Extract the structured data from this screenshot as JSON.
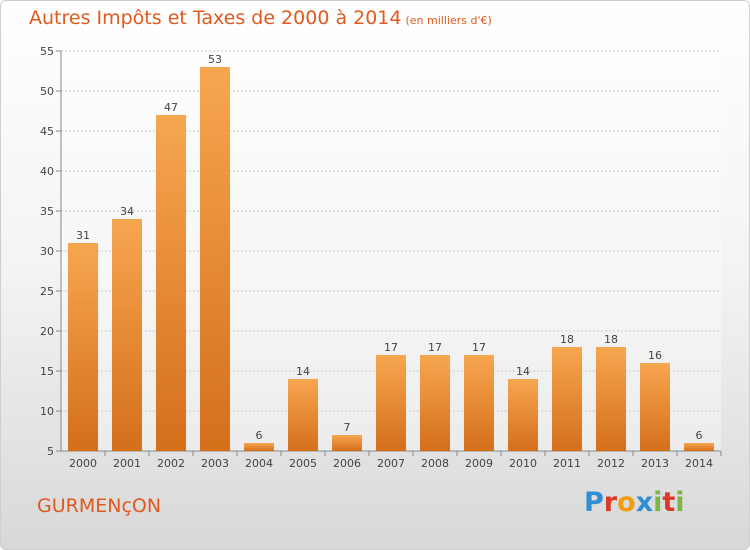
{
  "title": "Autres Impôts et Taxes de 2000 à 2014",
  "unit": "(en milliers d'€)",
  "place": "GURMENçON",
  "logo": {
    "letters": [
      "P",
      "r",
      "o",
      "x",
      "i",
      "t",
      "i"
    ],
    "colors": [
      "#2f8fd6",
      "#d83b2b",
      "#f39c12",
      "#2f8fd6",
      "#7ab648",
      "#d83b2b",
      "#7ab648"
    ]
  },
  "colors": {
    "bar_light": "#f7a650",
    "bar_dark": "#d46f1a",
    "accent": "#e0591e",
    "grid": "#c8c8c8"
  },
  "chart_data": {
    "type": "bar",
    "categories": [
      "2000",
      "2001",
      "2002",
      "2003",
      "2004",
      "2005",
      "2006",
      "2007",
      "2008",
      "2009",
      "2010",
      "2011",
      "2012",
      "2013",
      "2014"
    ],
    "values": [
      31,
      34,
      47,
      53,
      6,
      14,
      7,
      17,
      17,
      17,
      14,
      18,
      18,
      16,
      6
    ],
    "title": "Autres Impôts et Taxes de 2000 à 2014",
    "ylim": [
      5,
      55
    ],
    "yticks": [
      5,
      10,
      15,
      20,
      25,
      30,
      35,
      40,
      45,
      50,
      55
    ],
    "grid": true
  }
}
